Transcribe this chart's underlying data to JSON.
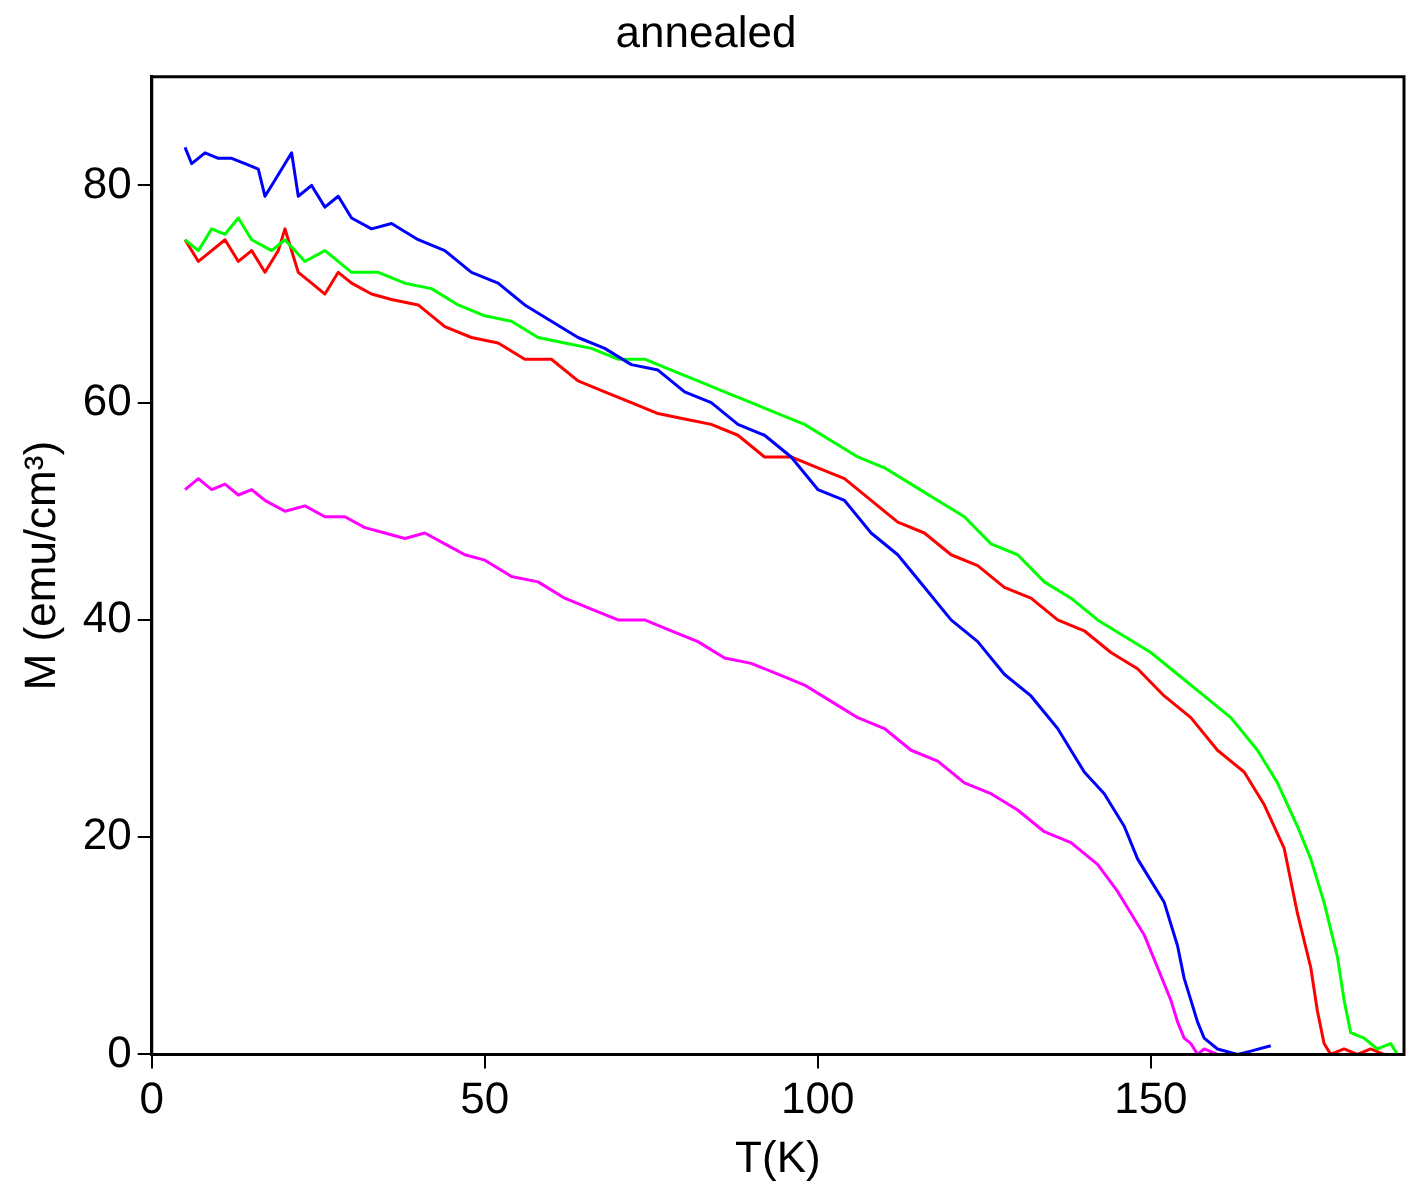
{
  "chart_data": {
    "type": "line",
    "title": "annealed",
    "xlabel": "T(K)",
    "ylabel": "M (emu/cm³)",
    "xlim": [
      0,
      188
    ],
    "ylim": [
      0,
      90
    ],
    "xticks": [
      0,
      50,
      100,
      150
    ],
    "yticks": [
      0,
      20,
      40,
      60,
      80
    ],
    "grid": false,
    "legend": false,
    "marker": "none",
    "line_style": "solid",
    "series": [
      {
        "color": "#0000ff",
        "x": [
          5,
          6,
          8,
          10,
          12,
          14,
          16,
          17,
          18,
          20,
          21,
          22,
          24,
          26,
          28,
          30,
          33,
          36,
          40,
          44,
          48,
          52,
          56,
          60,
          64,
          68,
          72,
          76,
          80,
          84,
          88,
          92,
          96,
          100,
          104,
          108,
          112,
          116,
          120,
          124,
          128,
          132,
          136,
          140,
          143,
          146,
          148,
          150,
          152,
          154,
          155,
          156,
          157,
          158,
          160,
          163,
          165,
          168
        ],
        "values": [
          83.5,
          82,
          83,
          82.5,
          82.5,
          82,
          81.5,
          79,
          80,
          82,
          83,
          79,
          80,
          78,
          79,
          77,
          76,
          76.5,
          75,
          74,
          72,
          71,
          69,
          67.5,
          66,
          65,
          63.5,
          63,
          61,
          60,
          58,
          57,
          55,
          52,
          51,
          48,
          46,
          43,
          40,
          38,
          35,
          33,
          30,
          26,
          24,
          21,
          18,
          16,
          14,
          10,
          7,
          5,
          3,
          1.5,
          0.5,
          0,
          0.3,
          0.8
        ]
      },
      {
        "color": "#00ff00",
        "x": [
          5,
          7,
          9,
          11,
          13,
          15,
          18,
          20,
          23,
          26,
          30,
          34,
          38,
          42,
          46,
          50,
          54,
          58,
          62,
          66,
          70,
          74,
          78,
          82,
          86,
          90,
          94,
          98,
          102,
          106,
          110,
          114,
          118,
          122,
          126,
          130,
          134,
          138,
          142,
          146,
          150,
          154,
          158,
          162,
          166,
          169,
          172,
          174,
          176,
          178,
          179,
          180,
          182,
          184,
          186,
          187
        ],
        "values": [
          75,
          74,
          76,
          75.5,
          77,
          75,
          74,
          75,
          73,
          74,
          72,
          72,
          71,
          70.5,
          69,
          68,
          67.5,
          66,
          65.5,
          65,
          64,
          64,
          63,
          62,
          61,
          60,
          59,
          58,
          56.5,
          55,
          54,
          52.5,
          51,
          49.5,
          47,
          46,
          43.5,
          42,
          40,
          38.5,
          37,
          35,
          33,
          31,
          28,
          25,
          21,
          18,
          14,
          9,
          5,
          2,
          1.5,
          0.5,
          1,
          0
        ]
      },
      {
        "color": "#ff0000",
        "x": [
          5,
          7,
          9,
          11,
          13,
          15,
          17,
          19,
          20,
          22,
          24,
          26,
          28,
          30,
          33,
          36,
          40,
          44,
          48,
          52,
          56,
          60,
          64,
          68,
          72,
          76,
          80,
          84,
          88,
          92,
          96,
          100,
          104,
          108,
          112,
          116,
          120,
          124,
          128,
          132,
          136,
          140,
          144,
          148,
          152,
          156,
          160,
          164,
          167,
          170,
          172,
          174,
          175,
          176,
          177,
          179,
          181,
          183,
          185
        ],
        "values": [
          75,
          73,
          74,
          75,
          73,
          74,
          72,
          74,
          76,
          72,
          71,
          70,
          72,
          71,
          70,
          69.5,
          69,
          67,
          66,
          65.5,
          64,
          64,
          62,
          61,
          60,
          59,
          58.5,
          58,
          57,
          55,
          55,
          54,
          53,
          51,
          49,
          48,
          46,
          45,
          43,
          42,
          40,
          39,
          37,
          35.5,
          33,
          31,
          28,
          26,
          23,
          19,
          13,
          8,
          4,
          1,
          0,
          0.5,
          0,
          0.5,
          0
        ]
      },
      {
        "color": "#ff00ff",
        "x": [
          5,
          7,
          9,
          11,
          13,
          15,
          17,
          20,
          23,
          26,
          29,
          32,
          35,
          38,
          41,
          44,
          47,
          50,
          54,
          58,
          62,
          66,
          70,
          74,
          78,
          82,
          86,
          90,
          94,
          98,
          102,
          106,
          110,
          114,
          118,
          122,
          126,
          130,
          134,
          138,
          142,
          145,
          147,
          149,
          151,
          153,
          154,
          155,
          156,
          157,
          158,
          160,
          162
        ],
        "values": [
          52,
          53,
          52,
          52.5,
          51.5,
          52,
          51,
          50,
          50.5,
          49.5,
          49.5,
          48.5,
          48,
          47.5,
          48,
          47,
          46,
          45.5,
          44,
          43.5,
          42,
          41,
          40,
          40,
          39,
          38,
          36.5,
          36,
          35,
          34,
          32.5,
          31,
          30,
          28,
          27,
          25,
          24,
          22.5,
          20.5,
          19.5,
          17.5,
          15,
          13,
          11,
          8,
          5,
          3,
          1.5,
          1,
          0,
          0.5,
          0,
          0
        ]
      }
    ]
  }
}
